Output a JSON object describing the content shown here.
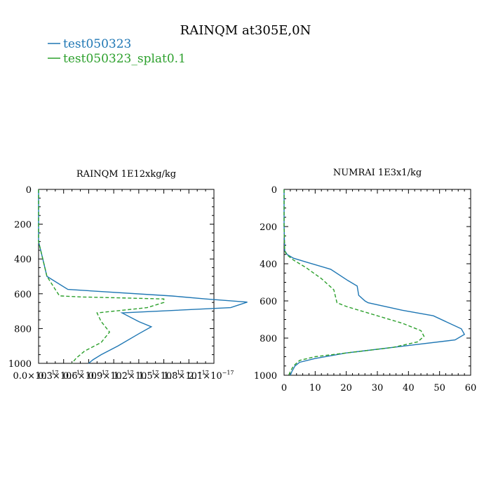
{
  "figure_title": "RAINQM at305E,0N",
  "legend": [
    {
      "label": "test050323",
      "color": "#1f77b4",
      "style": "solid"
    },
    {
      "label": "test050323_splat0.1",
      "color": "#2ca02c",
      "style": "dashed"
    }
  ],
  "chart_data": [
    {
      "type": "line",
      "title": "RAINQM  1E12xkg/kg",
      "xlabel": "",
      "ylabel": "",
      "xlim": [
        0,
        2.1e-17
      ],
      "ylim": [
        1000,
        0
      ],
      "xticks": [
        0,
        3e-18,
        6e-18,
        9e-18,
        1.2e-17,
        1.5e-17,
        1.8e-17,
        2.1e-17
      ],
      "xtick_labels": [
        "0.0×10",
        "0.3×10",
        "0.6×10",
        "0.9×10",
        "1.2×10",
        "1.5×10",
        "1.8×10",
        "2.1×10"
      ],
      "xtick_exp": "−17",
      "yticks": [
        0,
        200,
        400,
        600,
        800,
        1000
      ],
      "series": [
        {
          "name": "test050323",
          "color": "#1f77b4",
          "style": "solid",
          "x": [
            0,
            0,
            0.0,
            5e-19,
            1e-18,
            3.5e-18,
            1.6e-17,
            2e-17,
            2.5e-17,
            2.3e-17,
            1e-17,
            1.2e-17,
            1.35e-17,
            1.2e-17,
            9.5e-18,
            7.5e-18,
            6.5e-18,
            6e-18
          ],
          "y": [
            0,
            100,
            300,
            400,
            500,
            575,
            613,
            630,
            648,
            680,
            710,
            760,
            790,
            830,
            900,
            950,
            980,
            1000
          ]
        },
        {
          "name": "test050323_splat0.1",
          "color": "#2ca02c",
          "style": "dashed",
          "x": [
            0,
            0,
            0.0,
            5e-19,
            1e-18,
            2e-18,
            2.5e-18,
            5e-18,
            1.5e-17,
            1.5e-17,
            1.3e-17,
            7e-18,
            7.5e-18,
            8.5e-18,
            7.5e-18,
            5.5e-18,
            4.5e-18,
            4e-18
          ],
          "y": [
            0,
            100,
            300,
            400,
            500,
            575,
            612,
            618,
            630,
            650,
            680,
            710,
            760,
            820,
            880,
            930,
            970,
            1000
          ]
        }
      ]
    },
    {
      "type": "line",
      "title": "NUMRAI  1E3x1/kg",
      "xlabel": "",
      "ylabel": "",
      "xlim": [
        0,
        60
      ],
      "ylim": [
        1000,
        0
      ],
      "xticks": [
        0,
        10,
        20,
        30,
        40,
        50,
        60
      ],
      "xtick_labels": [
        "0",
        "10",
        "20",
        "30",
        "40",
        "50",
        "60"
      ],
      "yticks": [
        0,
        200,
        400,
        600,
        800,
        1000
      ],
      "series": [
        {
          "name": "test050323",
          "color": "#1f77b4",
          "style": "solid",
          "x": [
            0,
            0,
            0.2,
            1.0,
            3.0,
            7.0,
            15.0,
            20.5,
            23.5,
            24.0,
            26.0,
            27.0,
            38.0,
            48.0,
            57.0,
            58.0,
            55.0,
            40.0,
            20.0,
            10.0,
            5.0,
            3.5,
            2.5,
            2.0
          ],
          "y": [
            0,
            200,
            330,
            350,
            370,
            390,
            430,
            490,
            520,
            570,
            600,
            610,
            650,
            680,
            750,
            780,
            810,
            840,
            880,
            910,
            930,
            950,
            980,
            1000
          ]
        },
        {
          "name": "test050323_splat0.1",
          "color": "#2ca02c",
          "style": "dashed",
          "x": [
            0,
            0,
            0.2,
            0.8,
            3.0,
            7.0,
            12.0,
            16.0,
            17.0,
            20.0,
            30.0,
            38.0,
            44.0,
            45.0,
            43.0,
            35.0,
            20.0,
            10.0,
            5.0,
            3.0,
            2.0,
            1.5
          ],
          "y": [
            0,
            200,
            330,
            350,
            380,
            420,
            480,
            540,
            610,
            630,
            680,
            720,
            760,
            790,
            820,
            850,
            880,
            900,
            920,
            950,
            980,
            1000
          ]
        }
      ]
    }
  ]
}
